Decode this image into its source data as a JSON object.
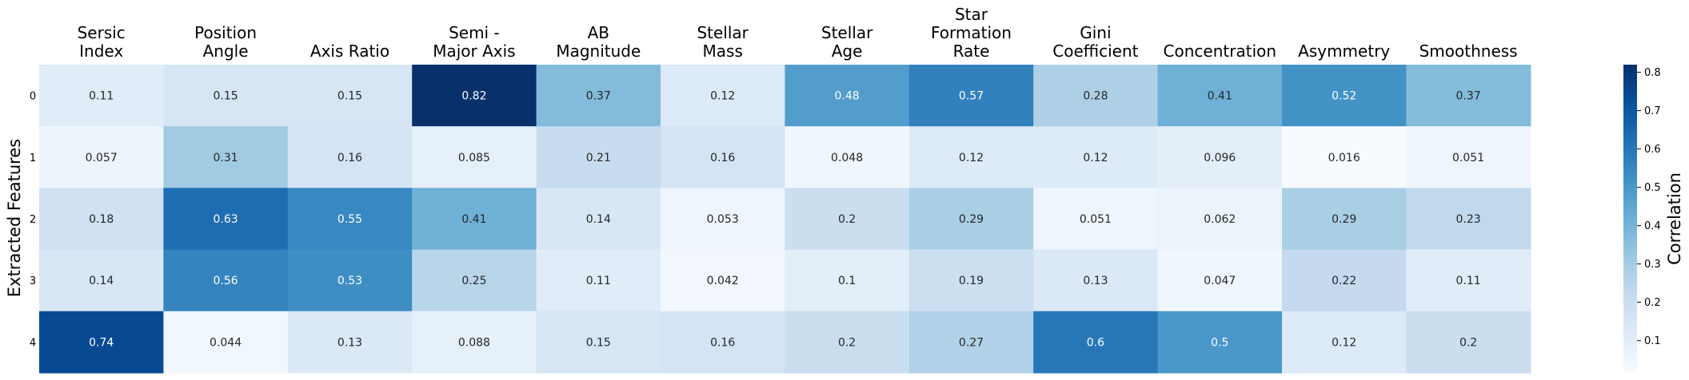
{
  "chart_data": {
    "type": "heatmap",
    "title": "",
    "xlabel": "",
    "ylabel": "Extracted Features",
    "x_categories": [
      [
        "Sersic",
        "Index"
      ],
      [
        "Position",
        "Angle"
      ],
      [
        "Axis Ratio"
      ],
      [
        "Semi -",
        "Major Axis"
      ],
      [
        "AB",
        "Magnitude"
      ],
      [
        "Stellar",
        "Mass"
      ],
      [
        "Stellar",
        "Age"
      ],
      [
        "Star",
        "Formation",
        "Rate"
      ],
      [
        "Gini",
        "Coefficient"
      ],
      [
        "Concentration"
      ],
      [
        "Asymmetry"
      ],
      [
        "Smoothness"
      ]
    ],
    "y_categories": [
      "0",
      "1",
      "2",
      "3",
      "4"
    ],
    "values": [
      [
        0.11,
        0.15,
        0.15,
        0.82,
        0.37,
        0.12,
        0.48,
        0.57,
        0.28,
        0.41,
        0.52,
        0.37
      ],
      [
        0.057,
        0.31,
        0.16,
        0.085,
        0.21,
        0.16,
        0.048,
        0.12,
        0.12,
        0.096,
        0.016,
        0.051
      ],
      [
        0.18,
        0.63,
        0.55,
        0.41,
        0.14,
        0.053,
        0.2,
        0.29,
        0.051,
        0.062,
        0.29,
        0.23
      ],
      [
        0.14,
        0.56,
        0.53,
        0.25,
        0.11,
        0.042,
        0.1,
        0.19,
        0.13,
        0.047,
        0.22,
        0.11
      ],
      [
        0.74,
        0.044,
        0.13,
        0.088,
        0.15,
        0.16,
        0.2,
        0.27,
        0.6,
        0.5,
        0.12,
        0.2
      ]
    ],
    "colormap": "Blues",
    "vmin": 0.016,
    "vmax": 0.82,
    "colorbar": {
      "label": "Correlation",
      "ticks": [
        0.1,
        0.2,
        0.3,
        0.4,
        0.5,
        0.6,
        0.7,
        0.8
      ],
      "placement": "right"
    },
    "grid": false,
    "legend": "none"
  }
}
